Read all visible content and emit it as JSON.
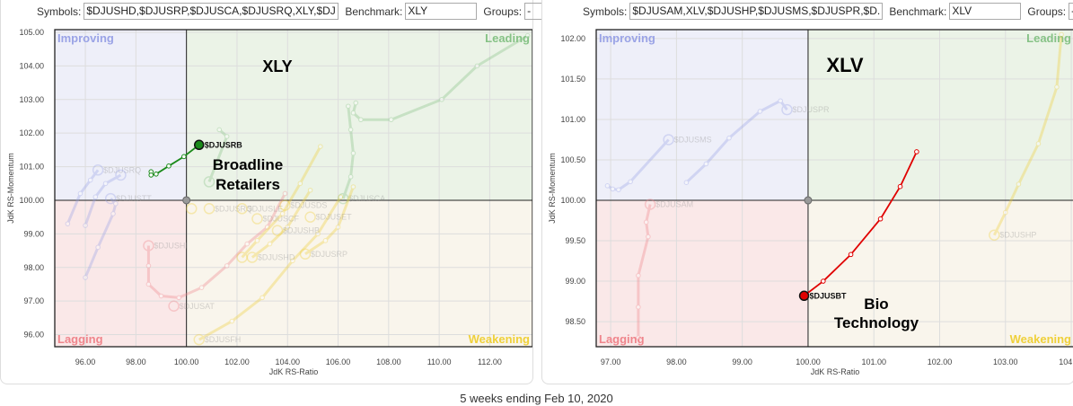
{
  "caption": "5 weeks ending Feb 10, 2020",
  "colors": {
    "improving_bg": "#eeeff9",
    "leading_bg": "#ebf3e7",
    "lagging_bg": "#fae8e8",
    "weakening_bg": "#f9f5ec",
    "improving": "#9aa3e6",
    "leading": "#86c286",
    "lagging": "#ef858c",
    "weakening": "#efd03a",
    "green": "#1a8a1a",
    "red": "#e00000"
  },
  "panels": [
    {
      "symbols_label": "Symbols:",
      "symbols_value": "$DJUSHD,$DJUSRP,$DJUSCA,$DJUSRQ,XLY,$DJ",
      "benchmark_label": "Benchmark:",
      "benchmark_value": "XLY",
      "groups_label": "Groups:",
      "groups_value": "-",
      "annotation_title": "XLY",
      "annotation_line1": "Broadline",
      "annotation_line2": "Retailers"
    },
    {
      "symbols_label": "Symbols:",
      "symbols_value": "$DJUSAM,XLV,$DJUSHP,$DJUSMS,$DJUSPR,$D.",
      "benchmark_label": "Benchmark:",
      "benchmark_value": "XLV",
      "groups_label": "Groups:",
      "groups_value": "-",
      "annotation_title": "XLV",
      "annotation_line1": "Bio",
      "annotation_line2": "Technology"
    }
  ],
  "chart_data": [
    {
      "type": "scatter",
      "xlabel": "JdK RS-Ratio",
      "ylabel": "JdK RS-Momentum",
      "xlim": [
        94.79,
        113.69
      ],
      "ylim": [
        95.64,
        105.08
      ],
      "xticks": [
        96,
        98,
        100,
        102,
        104,
        106,
        108,
        110,
        112
      ],
      "yticks": [
        96,
        97,
        98,
        99,
        100,
        101,
        102,
        103,
        104,
        105
      ],
      "tick_decimals": 2,
      "quadrants": {
        "improving": "Improving",
        "leading": "Leading",
        "lagging": "Lagging",
        "weakening": "Weakening"
      },
      "benchmark": [
        100,
        100
      ],
      "series": [
        {
          "name": "",
          "quadrant": "leading",
          "points": [
            [
              113.5,
              104.9
            ],
            [
              111.5,
              104.0
            ],
            [
              110.1,
              103.0
            ],
            [
              108.1,
              102.4
            ],
            [
              106.9,
              102.4
            ],
            [
              106.6,
              102.6
            ],
            [
              106.7,
              102.9
            ]
          ],
          "head": false
        },
        {
          "name": "$DJUSCA",
          "quadrant": "leading",
          "points": [
            [
              106.4,
              102.8
            ],
            [
              106.5,
              102.1
            ],
            [
              106.6,
              101.4
            ],
            [
              106.5,
              100.7
            ],
            [
              106.2,
              100.05
            ]
          ]
        },
        {
          "name": "",
          "quadrant": "leading",
          "points": [
            [
              101.3,
              102.1
            ],
            [
              101.6,
              101.9
            ],
            [
              100.9,
              100.55
            ]
          ]
        },
        {
          "name": "$DJUSRQ",
          "quadrant": "improving",
          "points": [
            [
              95.3,
              99.3
            ],
            [
              95.8,
              100.2
            ],
            [
              96.2,
              100.6
            ],
            [
              96.5,
              100.9
            ]
          ]
        },
        {
          "name": "",
          "quadrant": "improving",
          "points": [
            [
              96.0,
              99.25
            ],
            [
              96.4,
              100.1
            ],
            [
              96.8,
              100.5
            ],
            [
              97.4,
              100.75
            ]
          ]
        },
        {
          "name": "$DJUSTT",
          "quadrant": "improving",
          "points": [
            [
              96.0,
              97.7
            ],
            [
              96.5,
              98.6
            ],
            [
              97.1,
              99.6
            ],
            [
              97.2,
              99.9
            ],
            [
              97.0,
              100.05
            ]
          ]
        },
        {
          "name": "$DJUSHI",
          "quadrant": "lagging",
          "points": [
            [
              103.9,
              100.2
            ],
            [
              103.2,
              99.2
            ],
            [
              102.4,
              98.7
            ],
            [
              101.6,
              98.05
            ],
            [
              100.6,
              97.4
            ],
            [
              99.7,
              97.1
            ],
            [
              99.0,
              97.15
            ],
            [
              98.5,
              97.5
            ],
            [
              98.5,
              98.05
            ],
            [
              98.5,
              98.65
            ]
          ]
        },
        {
          "name": "$DJUSAT",
          "quadrant": "lagging",
          "points": [
            [
              99.5,
              96.85
            ]
          ]
        },
        {
          "name": "$DJUSFH",
          "quadrant": "weakening",
          "points": [
            [
              106.1,
              100.1
            ],
            [
              105.2,
              99.0
            ],
            [
              104.2,
              98.2
            ],
            [
              103.0,
              97.1
            ],
            [
              101.8,
              96.4
            ],
            [
              100.5,
              95.85
            ]
          ]
        },
        {
          "name": "",
          "quadrant": "weakening",
          "points": [
            [
              105.3,
              101.6
            ],
            [
              104.5,
              100.5
            ],
            [
              103.8,
              99.6
            ],
            [
              102.8,
              98.8
            ],
            [
              102.2,
              98.3
            ]
          ]
        },
        {
          "name": "$DJUSHD",
          "quadrant": "weakening",
          "points": [
            [
              104.9,
              100.3
            ],
            [
              104.0,
              99.2
            ],
            [
              103.3,
              98.7
            ],
            [
              102.6,
              98.3
            ]
          ]
        },
        {
          "name": "$DJUSRP",
          "quadrant": "weakening",
          "points": [
            [
              106.6,
              100.4
            ],
            [
              106.0,
              99.2
            ],
            [
              105.5,
              98.8
            ],
            [
              104.7,
              98.4
            ]
          ]
        },
        {
          "name": "",
          "quadrant": "weakening",
          "points": [
            [
              100.2,
              99.75
            ]
          ]
        },
        {
          "name": "$DJUSRQ",
          "quadrant": "weakening",
          "points": [
            [
              100.9,
              99.75
            ]
          ]
        },
        {
          "name": "$DJUSLE",
          "quadrant": "weakening",
          "points": [
            [
              102.2,
              99.75
            ]
          ]
        },
        {
          "name": "$DJUSCF",
          "quadrant": "weakening",
          "points": [
            [
              102.8,
              99.45
            ]
          ]
        },
        {
          "name": "$DJUSDS",
          "quadrant": "weakening",
          "points": [
            [
              103.9,
              99.85
            ]
          ]
        },
        {
          "name": "$DJUSET",
          "quadrant": "weakening",
          "points": [
            [
              104.9,
              99.5
            ]
          ]
        },
        {
          "name": "$DJUSHB",
          "quadrant": "weakening",
          "points": [
            [
              103.6,
              99.1
            ]
          ]
        },
        {
          "name": "$DJUSRB",
          "highlight": true,
          "color": "#1a8a1a",
          "points": [
            [
              98.6,
              100.85
            ],
            [
              98.6,
              100.75
            ],
            [
              98.8,
              100.78
            ],
            [
              99.3,
              101.02
            ],
            [
              99.9,
              101.3
            ],
            [
              100.5,
              101.65
            ]
          ]
        }
      ]
    },
    {
      "type": "scatter",
      "xlabel": "JdK RS-Ratio",
      "ylabel": "JdK RS-Momentum",
      "xlim": [
        96.78,
        104.04
      ],
      "ylim": [
        98.19,
        102.11
      ],
      "xticks": [
        97,
        98,
        99,
        100,
        101,
        102,
        103,
        104
      ],
      "yticks": [
        98.5,
        99,
        99.5,
        100,
        100.5,
        101,
        101.5,
        102
      ],
      "tick_decimals": 2,
      "quadrants": {
        "improving": "Improving",
        "leading": "Leading",
        "lagging": "Lagging",
        "weakening": "Weakening"
      },
      "benchmark": [
        100,
        100
      ],
      "series": [
        {
          "name": "$DJUSPR",
          "quadrant": "improving",
          "points": [
            [
              98.15,
              100.22
            ],
            [
              98.45,
              100.45
            ],
            [
              98.8,
              100.77
            ],
            [
              99.27,
              101.1
            ],
            [
              99.58,
              101.23
            ],
            [
              99.68,
              101.12
            ]
          ]
        },
        {
          "name": "$DJUSMS",
          "quadrant": "improving",
          "points": [
            [
              96.95,
              100.18
            ],
            [
              97.03,
              100.14
            ],
            [
              97.12,
              100.13
            ],
            [
              97.3,
              100.23
            ],
            [
              97.88,
              100.75
            ]
          ]
        },
        {
          "name": "$DJUSAM",
          "quadrant": "lagging",
          "points": [
            [
              97.42,
              98.3
            ],
            [
              97.42,
              98.68
            ],
            [
              97.42,
              99.07
            ],
            [
              97.57,
              99.55
            ],
            [
              97.54,
              99.73
            ],
            [
              97.6,
              99.95
            ]
          ]
        },
        {
          "name": "$DJUSHP",
          "quadrant": "weakening",
          "points": [
            [
              103.85,
              102.05
            ],
            [
              103.78,
              101.4
            ],
            [
              103.5,
              100.7
            ],
            [
              103.2,
              100.2
            ],
            [
              103.0,
              99.85
            ],
            [
              102.83,
              99.57
            ]
          ]
        },
        {
          "name": "$DJUSBT",
          "highlight": true,
          "color": "#e00000",
          "points": [
            [
              101.65,
              100.6
            ],
            [
              101.4,
              100.17
            ],
            [
              101.1,
              99.77
            ],
            [
              100.65,
              99.33
            ],
            [
              100.23,
              99.0
            ],
            [
              99.94,
              98.82
            ]
          ]
        }
      ]
    }
  ]
}
